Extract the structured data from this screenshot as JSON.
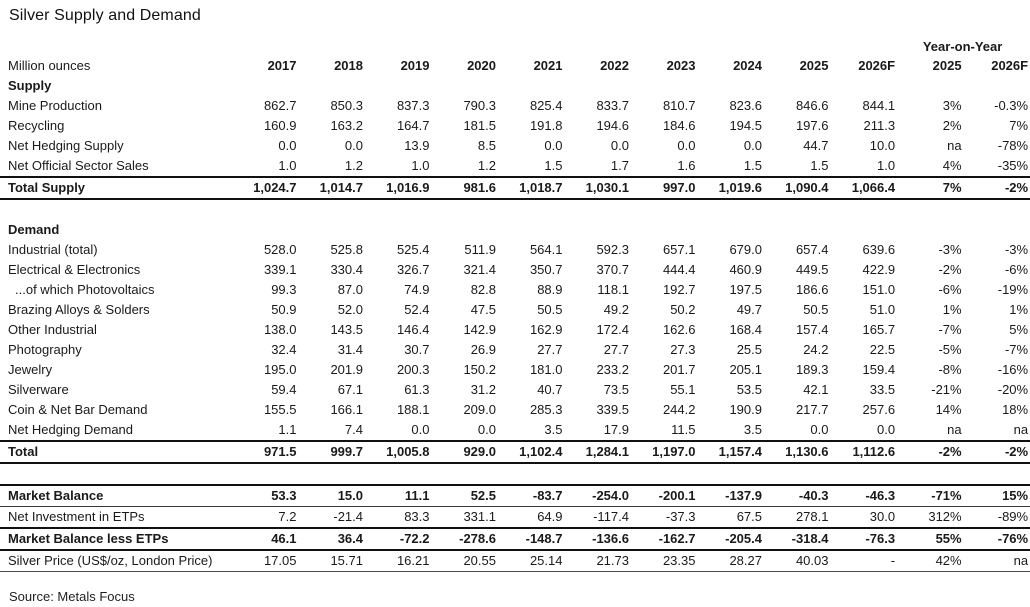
{
  "chart_data": {
    "type": "table",
    "title": "Silver Supply and Demand",
    "unit_label": "Million ounces",
    "yoy_header": "Year-on-Year",
    "columns": [
      "2017",
      "2018",
      "2019",
      "2020",
      "2021",
      "2022",
      "2023",
      "2024",
      "2025",
      "2026F"
    ],
    "yoy_columns": [
      "2025",
      "2026F"
    ],
    "source": "Source: Metals Focus",
    "colors": {
      "text": "#1a1a1a",
      "rule": "#111111",
      "background": "#ffffff"
    },
    "rows": [
      {
        "label": "Supply",
        "style": "section",
        "values": [],
        "yoy": []
      },
      {
        "label": "Mine Production",
        "style": "data",
        "values": [
          "862.7",
          "850.3",
          "837.3",
          "790.3",
          "825.4",
          "833.7",
          "810.7",
          "823.6",
          "846.6",
          "844.1"
        ],
        "yoy": [
          "3%",
          "-0.3%"
        ]
      },
      {
        "label": "Recycling",
        "style": "data",
        "values": [
          "160.9",
          "163.2",
          "164.7",
          "181.5",
          "191.8",
          "194.6",
          "184.6",
          "194.5",
          "197.6",
          "211.3"
        ],
        "yoy": [
          "2%",
          "7%"
        ]
      },
      {
        "label": "Net Hedging Supply",
        "style": "data",
        "values": [
          "0.0",
          "0.0",
          "13.9",
          "8.5",
          "0.0",
          "0.0",
          "0.0",
          "0.0",
          "44.7",
          "10.0"
        ],
        "yoy": [
          "na",
          "-78%"
        ]
      },
      {
        "label": "Net Official Sector Sales",
        "style": "data",
        "values": [
          "1.0",
          "1.2",
          "1.0",
          "1.2",
          "1.5",
          "1.7",
          "1.6",
          "1.5",
          "1.5",
          "1.0"
        ],
        "yoy": [
          "4%",
          "-35%"
        ]
      },
      {
        "label": "Total Supply",
        "style": "total",
        "values": [
          "1,024.7",
          "1,014.7",
          "1,016.9",
          "981.6",
          "1,018.7",
          "1,030.1",
          "997.0",
          "1,019.6",
          "1,090.4",
          "1,066.4"
        ],
        "yoy": [
          "7%",
          "-2%"
        ]
      },
      {
        "label": "",
        "style": "spacer",
        "values": [],
        "yoy": []
      },
      {
        "label": "Demand",
        "style": "section",
        "values": [],
        "yoy": []
      },
      {
        "label": "Industrial (total)",
        "style": "data",
        "values": [
          "528.0",
          "525.8",
          "525.4",
          "511.9",
          "564.1",
          "592.3",
          "657.1",
          "679.0",
          "657.4",
          "639.6"
        ],
        "yoy": [
          "-3%",
          "-3%"
        ]
      },
      {
        "label": "Electrical & Electronics",
        "style": "data",
        "values": [
          "339.1",
          "330.4",
          "326.7",
          "321.4",
          "350.7",
          "370.7",
          "444.4",
          "460.9",
          "449.5",
          "422.9"
        ],
        "yoy": [
          "-2%",
          "-6%"
        ]
      },
      {
        "label": "...of which Photovoltaics",
        "style": "indent",
        "values": [
          "99.3",
          "87.0",
          "74.9",
          "82.8",
          "88.9",
          "118.1",
          "192.7",
          "197.5",
          "186.6",
          "151.0"
        ],
        "yoy": [
          "-6%",
          "-19%"
        ]
      },
      {
        "label": "Brazing Alloys & Solders",
        "style": "data",
        "values": [
          "50.9",
          "52.0",
          "52.4",
          "47.5",
          "50.5",
          "49.2",
          "50.2",
          "49.7",
          "50.5",
          "51.0"
        ],
        "yoy": [
          "1%",
          "1%"
        ]
      },
      {
        "label": "Other Industrial",
        "style": "data",
        "values": [
          "138.0",
          "143.5",
          "146.4",
          "142.9",
          "162.9",
          "172.4",
          "162.6",
          "168.4",
          "157.4",
          "165.7"
        ],
        "yoy": [
          "-7%",
          "5%"
        ]
      },
      {
        "label": "Photography",
        "style": "data",
        "values": [
          "32.4",
          "31.4",
          "30.7",
          "26.9",
          "27.7",
          "27.7",
          "27.3",
          "25.5",
          "24.2",
          "22.5"
        ],
        "yoy": [
          "-5%",
          "-7%"
        ]
      },
      {
        "label": "Jewelry",
        "style": "data",
        "values": [
          "195.0",
          "201.9",
          "200.3",
          "150.2",
          "181.0",
          "233.2",
          "201.7",
          "205.1",
          "189.3",
          "159.4"
        ],
        "yoy": [
          "-8%",
          "-16%"
        ]
      },
      {
        "label": "Silverware",
        "style": "data",
        "values": [
          "59.4",
          "67.1",
          "61.3",
          "31.2",
          "40.7",
          "73.5",
          "55.1",
          "53.5",
          "42.1",
          "33.5"
        ],
        "yoy": [
          "-21%",
          "-20%"
        ]
      },
      {
        "label": "Coin & Net Bar Demand",
        "style": "data",
        "values": [
          "155.5",
          "166.1",
          "188.1",
          "209.0",
          "285.3",
          "339.5",
          "244.2",
          "190.9",
          "217.7",
          "257.6"
        ],
        "yoy": [
          "14%",
          "18%"
        ]
      },
      {
        "label": "Net Hedging Demand",
        "style": "data",
        "values": [
          "1.1",
          "7.4",
          "0.0",
          "0.0",
          "3.5",
          "17.9",
          "11.5",
          "3.5",
          "0.0",
          "0.0"
        ],
        "yoy": [
          "na",
          "na"
        ]
      },
      {
        "label": "Total",
        "style": "total",
        "values": [
          "971.5",
          "999.7",
          "1,005.8",
          "929.0",
          "1,102.4",
          "1,284.1",
          "1,197.0",
          "1,157.4",
          "1,130.6",
          "1,112.6"
        ],
        "yoy": [
          "-2%",
          "-2%"
        ]
      },
      {
        "label": "",
        "style": "spacer",
        "values": [],
        "yoy": []
      },
      {
        "label": "Market Balance",
        "style": "mb",
        "values": [
          "53.3",
          "15.0",
          "11.1",
          "52.5",
          "-83.7",
          "-254.0",
          "-200.1",
          "-137.9",
          "-40.3",
          "-46.3"
        ],
        "yoy": [
          "-71%",
          "15%"
        ]
      },
      {
        "label": "Net Investment in ETPs",
        "style": "etp",
        "values": [
          "7.2",
          "-21.4",
          "83.3",
          "331.1",
          "64.9",
          "-117.4",
          "-37.3",
          "67.5",
          "278.1",
          "30.0"
        ],
        "yoy": [
          "312%",
          "-89%"
        ]
      },
      {
        "label": "Market Balance less ETPs",
        "style": "mbl",
        "values": [
          "46.1",
          "36.4",
          "-72.2",
          "-278.6",
          "-148.7",
          "-136.6",
          "-162.7",
          "-205.4",
          "-318.4",
          "-76.3"
        ],
        "yoy": [
          "55%",
          "-76%"
        ]
      },
      {
        "label": "Silver Price (US$/oz, London Price)",
        "style": "price",
        "values": [
          "17.05",
          "15.71",
          "16.21",
          "20.55",
          "25.14",
          "21.73",
          "23.35",
          "28.27",
          "40.03",
          "-"
        ],
        "yoy": [
          "42%",
          "na"
        ]
      }
    ]
  }
}
